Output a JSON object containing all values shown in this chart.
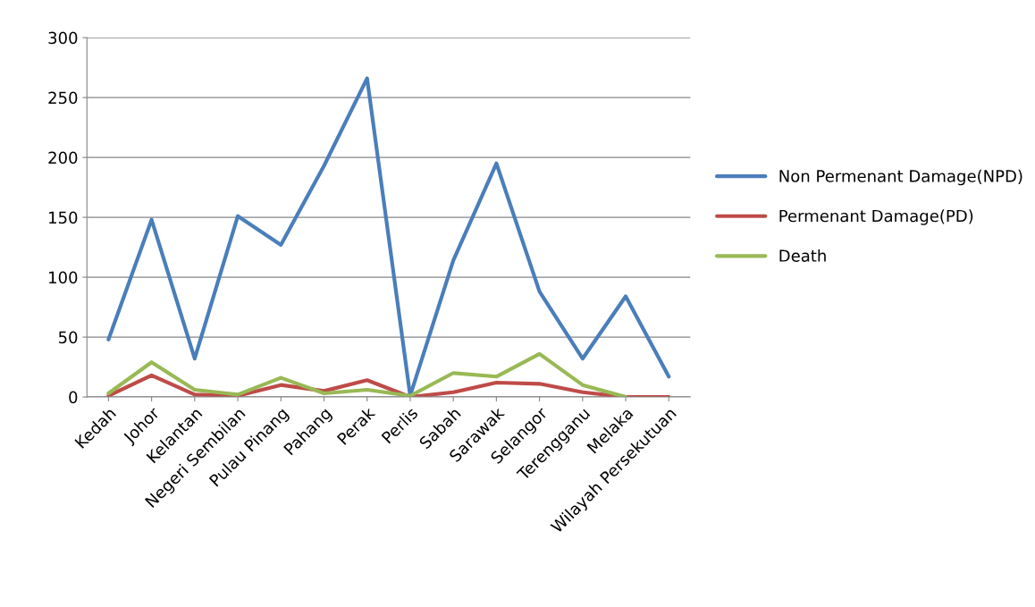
{
  "chart_data": {
    "type": "line",
    "categories": [
      "Kedah",
      "Johor",
      "Kelantan",
      "Negeri Sembilan",
      "Pulau Pinang",
      "Pahang",
      "Perak",
      "Perlis",
      "Sabah",
      "Sarawak",
      "Selangor",
      "Terengganu",
      "Melaka",
      "Wilayah Persekutuan"
    ],
    "series": [
      {
        "name": "Non Permenant Damage(NPD)",
        "color": "#4a7ebb",
        "values": [
          48,
          148,
          32,
          151,
          127,
          193,
          266,
          1,
          114,
          195,
          88,
          32,
          84,
          17
        ]
      },
      {
        "name": "Permenant Damage(PD)",
        "color": "#be4b48",
        "values": [
          1,
          18,
          2,
          1,
          10,
          5,
          14,
          0,
          4,
          12,
          11,
          4,
          0,
          0
        ]
      },
      {
        "name": "Death",
        "color": "#98b954",
        "values": [
          3,
          29,
          6,
          2,
          16,
          3,
          6,
          1,
          20,
          17,
          36,
          10,
          0,
          null
        ]
      }
    ],
    "ylim": [
      0,
      300
    ],
    "yticks": [
      0,
      50,
      100,
      150,
      200,
      250,
      300
    ],
    "grid": "y",
    "legend": "right",
    "marker": "none",
    "line_style": "solid"
  }
}
